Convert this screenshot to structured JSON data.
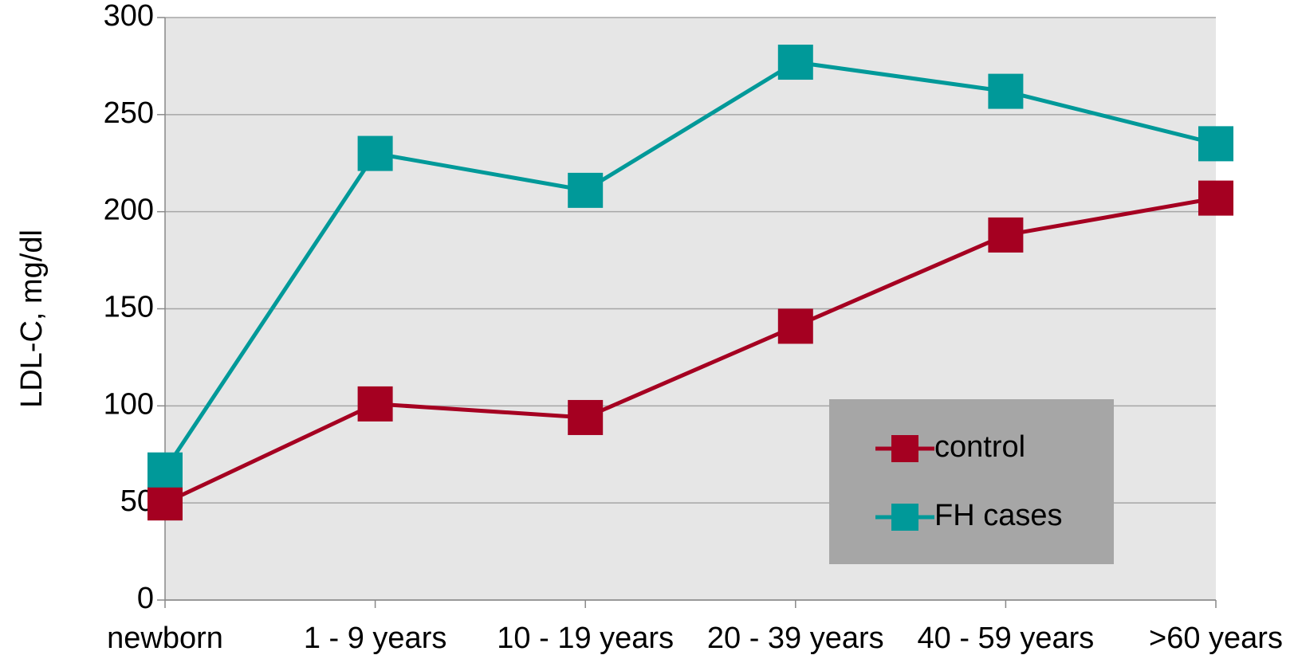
{
  "chart_data": {
    "type": "line",
    "y_label": "LDL-C, mg/dl",
    "categories": [
      "newborn",
      "1 - 9 years",
      "10 - 19 years",
      "20 - 39 years",
      "40 - 59 years",
      ">60 years"
    ],
    "series": [
      {
        "name": "control",
        "color": "#a50021",
        "values": [
          50,
          101,
          94,
          141,
          188,
          207
        ]
      },
      {
        "name": "FH cases",
        "color": "#009999",
        "values": [
          67,
          230,
          211,
          277,
          262,
          235
        ]
      }
    ],
    "ylim": [
      0,
      300
    ],
    "yticks": [
      0,
      50,
      100,
      150,
      200,
      250,
      300
    ],
    "grid": true,
    "legend": "lower right"
  }
}
